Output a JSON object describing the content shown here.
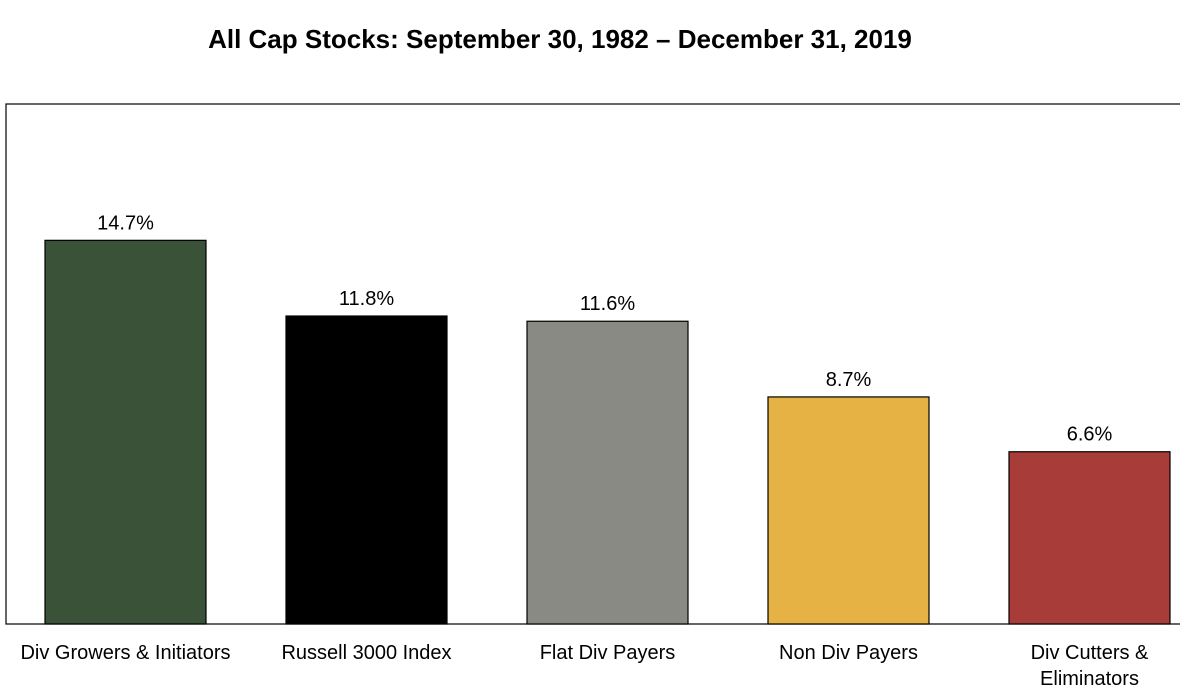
{
  "chart_data": {
    "type": "bar",
    "title": "All Cap Stocks:  September 30, 1982 – December 31, 2019",
    "xlabel": "",
    "ylabel": "",
    "ylim": [
      0,
      20
    ],
    "grid": false,
    "categories": [
      [
        "Div Growers & Initiators"
      ],
      [
        "Russell 3000 Index"
      ],
      [
        "Flat Div Payers"
      ],
      [
        "Non Div Payers"
      ],
      [
        "Div Cutters &",
        "Eliminators"
      ]
    ],
    "values": [
      14.7,
      11.8,
      11.6,
      8.7,
      6.6
    ],
    "data_labels": [
      "14.7%",
      "11.8%",
      "11.6%",
      "8.7%",
      "6.6%"
    ],
    "colors": [
      "#3a5238",
      "#000000",
      "#8a8a84",
      "#e6b244",
      "#a83c38"
    ]
  }
}
